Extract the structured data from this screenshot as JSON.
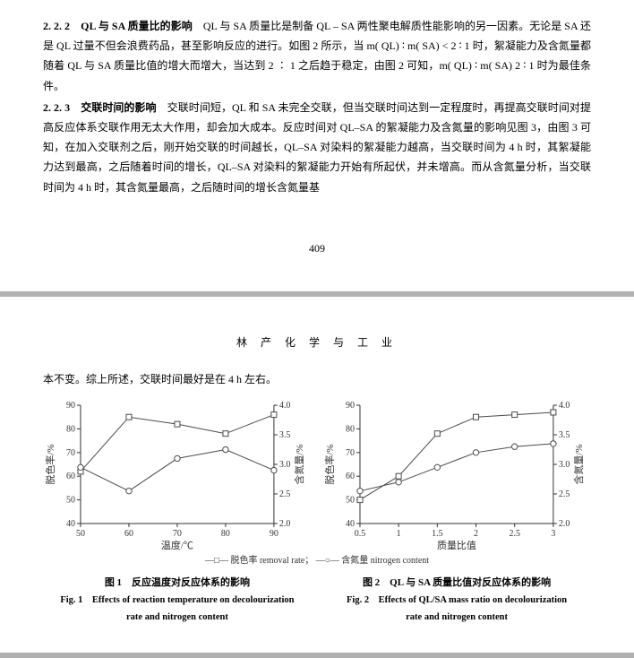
{
  "page_number": "409",
  "journal_header": "林 产 化 学 与 工 业",
  "section222": {
    "num": "2. 2. 2",
    "title": "QL 与 SA 质量比的影响",
    "body": "QL 与 SA 质量比是制备 QL – SA 两性聚电解质性能影响的另一因素。无论是 SA 还是 QL 过量不但会浪费药品，甚至影响反应的进行。如图 2 所示，当 m( QL) ∶ m( SA) < 2 ∶ 1 时，絮凝能力及含氮量都随着 QL 与 SA 质量比值的增大而增大，当达到 2 ∶ 1 之后趋于稳定，由图 2 可知，m( QL) ∶ m( SA) 2 ∶ 1 时为最佳条件。"
  },
  "section223": {
    "num": "2. 2. 3",
    "title": "交联时间的影响",
    "body": "交联时间短，QL 和 SA 未完全交联，但当交联时间达到一定程度时，再提高交联时间对提高反应体系交联作用无太大作用，却会加大成本。反应时间对 QL–SA 的絮凝能力及含氮量的影响见图 3，由图 3 可知，在加入交联剂之后，刚开始交联的时间越长，QL–SA 对染料的絮凝能力越高，当交联时间为 4 h 时，其絮凝能力达到最高，之后随着时间的增长，QL–SA 对染料的絮凝能力开始有所起伏，并未增高。而从含氮量分析，当交联时间为 4 h 时，其含氮量最高，之后随时间的增长含氮量基"
  },
  "continuation": "本不变。综上所述，交联时间最好是在 4 h 左右。",
  "legend": {
    "l1": "—□— 脱色率 removal rate；",
    "l2": "—○— 含氮量 nitrogen content"
  },
  "fig1": {
    "cn": "图 1　反应温度对反应体系的影响",
    "en1": "Fig. 1　Effects of reaction temperature on decolourization",
    "en2": "rate and nitrogen content",
    "xlabel": "温度/℃",
    "y1label": "脱色率/%",
    "y2label": "含氮量/%",
    "x_ticks": [
      50,
      60,
      70,
      80,
      90
    ],
    "y1_ticks": [
      40,
      50,
      60,
      70,
      80,
      90
    ],
    "y2_ticks": [
      2.0,
      2.5,
      3.0,
      3.5,
      4.0
    ],
    "series_removal": {
      "x": [
        50,
        60,
        70,
        80,
        90
      ],
      "y": [
        62,
        85,
        82,
        78,
        86
      ]
    },
    "series_nitrogen": {
      "x": [
        50,
        60,
        70,
        80,
        90
      ],
      "y": [
        2.95,
        2.55,
        3.1,
        3.25,
        2.9
      ]
    },
    "colors": {
      "line": "#4a4a4a",
      "axis": "#333333",
      "bg": "#ffffff"
    }
  },
  "fig2": {
    "cn": "图 2　QL 与 SA 质量比值对反应体系的影响",
    "en1": "Fig. 2　Effects of QL/SA mass ratio on decolourization",
    "en2": "rate and nitrogen content",
    "xlabel": "质量比值",
    "y1label": "脱色率/%",
    "y2label": "含氮量/%",
    "x_ticks": [
      0.5,
      1.0,
      1.5,
      2.0,
      2.5,
      3.0
    ],
    "y1_ticks": [
      40,
      50,
      60,
      70,
      80,
      90
    ],
    "y2_ticks": [
      2.0,
      2.5,
      3.0,
      3.5,
      4.0
    ],
    "series_removal": {
      "x": [
        0.5,
        1.0,
        1.5,
        2.0,
        2.5,
        3.0
      ],
      "y": [
        50,
        60,
        78,
        85,
        86,
        87
      ]
    },
    "series_nitrogen": {
      "x": [
        0.5,
        1.0,
        1.5,
        2.0,
        2.5,
        3.0
      ],
      "y": [
        2.55,
        2.7,
        2.95,
        3.2,
        3.3,
        3.35
      ]
    },
    "colors": {
      "line": "#4a4a4a",
      "axis": "#333333",
      "bg": "#ffffff"
    }
  }
}
